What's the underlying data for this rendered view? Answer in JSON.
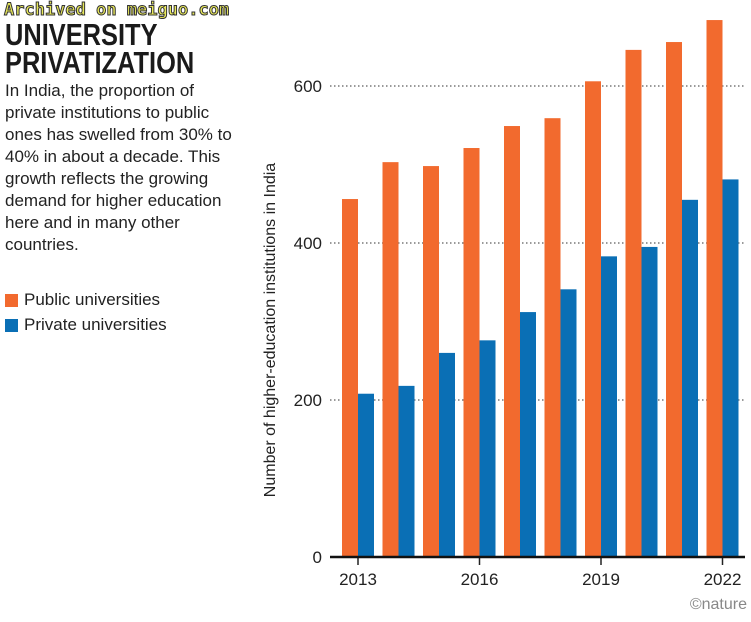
{
  "watermark": "Archived on meiguo.com",
  "title": "UNIVERSITY PRIVATIZATION",
  "description": "In India, the proportion of private institutions to public ones has swelled from 30% to 40% in about a decade. This growth reflects the growing demand for higher education here and in many other countries.",
  "credit": "©nature",
  "chart_data": {
    "type": "bar",
    "title": "UNIVERSITY PRIVATIZATION",
    "xlabel": "",
    "ylabel": "Number of higher-education institutions in India",
    "ylim": [
      0,
      700
    ],
    "yticks": [
      0,
      200,
      400,
      600
    ],
    "categories": [
      "2013",
      "2014",
      "2015",
      "2016",
      "2017",
      "2018",
      "2019",
      "2020",
      "2021",
      "2022"
    ],
    "xtick_labels": [
      "2013",
      "2016",
      "2019",
      "2022"
    ],
    "grid": "horizontal dotted",
    "legend": "left",
    "series": [
      {
        "name": "Public universities",
        "color": "#f26a2e",
        "values": [
          456,
          503,
          498,
          521,
          549,
          559,
          606,
          646,
          656,
          684
        ]
      },
      {
        "name": "Private universities",
        "color": "#0a6fb5",
        "values": [
          208,
          218,
          260,
          276,
          312,
          341,
          383,
          395,
          455,
          481
        ]
      }
    ]
  }
}
